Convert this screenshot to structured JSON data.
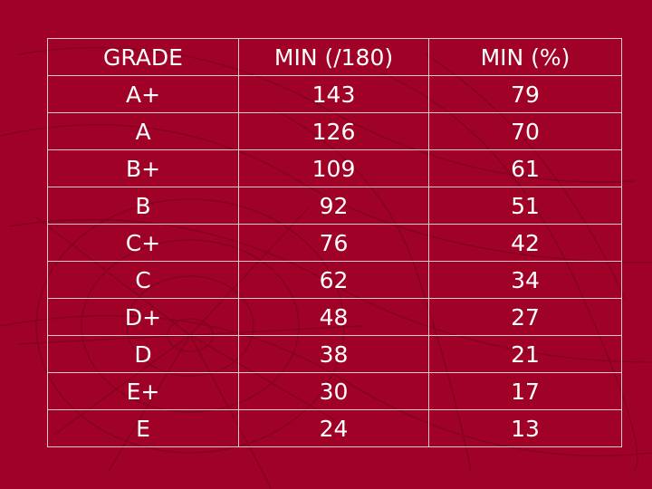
{
  "colors": {
    "background": "#a00127",
    "text": "#ffffff",
    "grid_lines": "#e6c9cf",
    "decoration": "#7d0020"
  },
  "table": {
    "headers": [
      "GRADE",
      "MIN (/180)",
      "MIN (%)"
    ],
    "rows": [
      [
        "A+",
        "143",
        "79"
      ],
      [
        "A",
        "126",
        "70"
      ],
      [
        "B+",
        "109",
        "61"
      ],
      [
        "B",
        "92",
        "51"
      ],
      [
        "C+",
        "76",
        "42"
      ],
      [
        "C",
        "62",
        "34"
      ],
      [
        "D+",
        "48",
        "27"
      ],
      [
        "D",
        "38",
        "21"
      ],
      [
        "E+",
        "30",
        "17"
      ],
      [
        "E",
        "24",
        "13"
      ]
    ]
  }
}
